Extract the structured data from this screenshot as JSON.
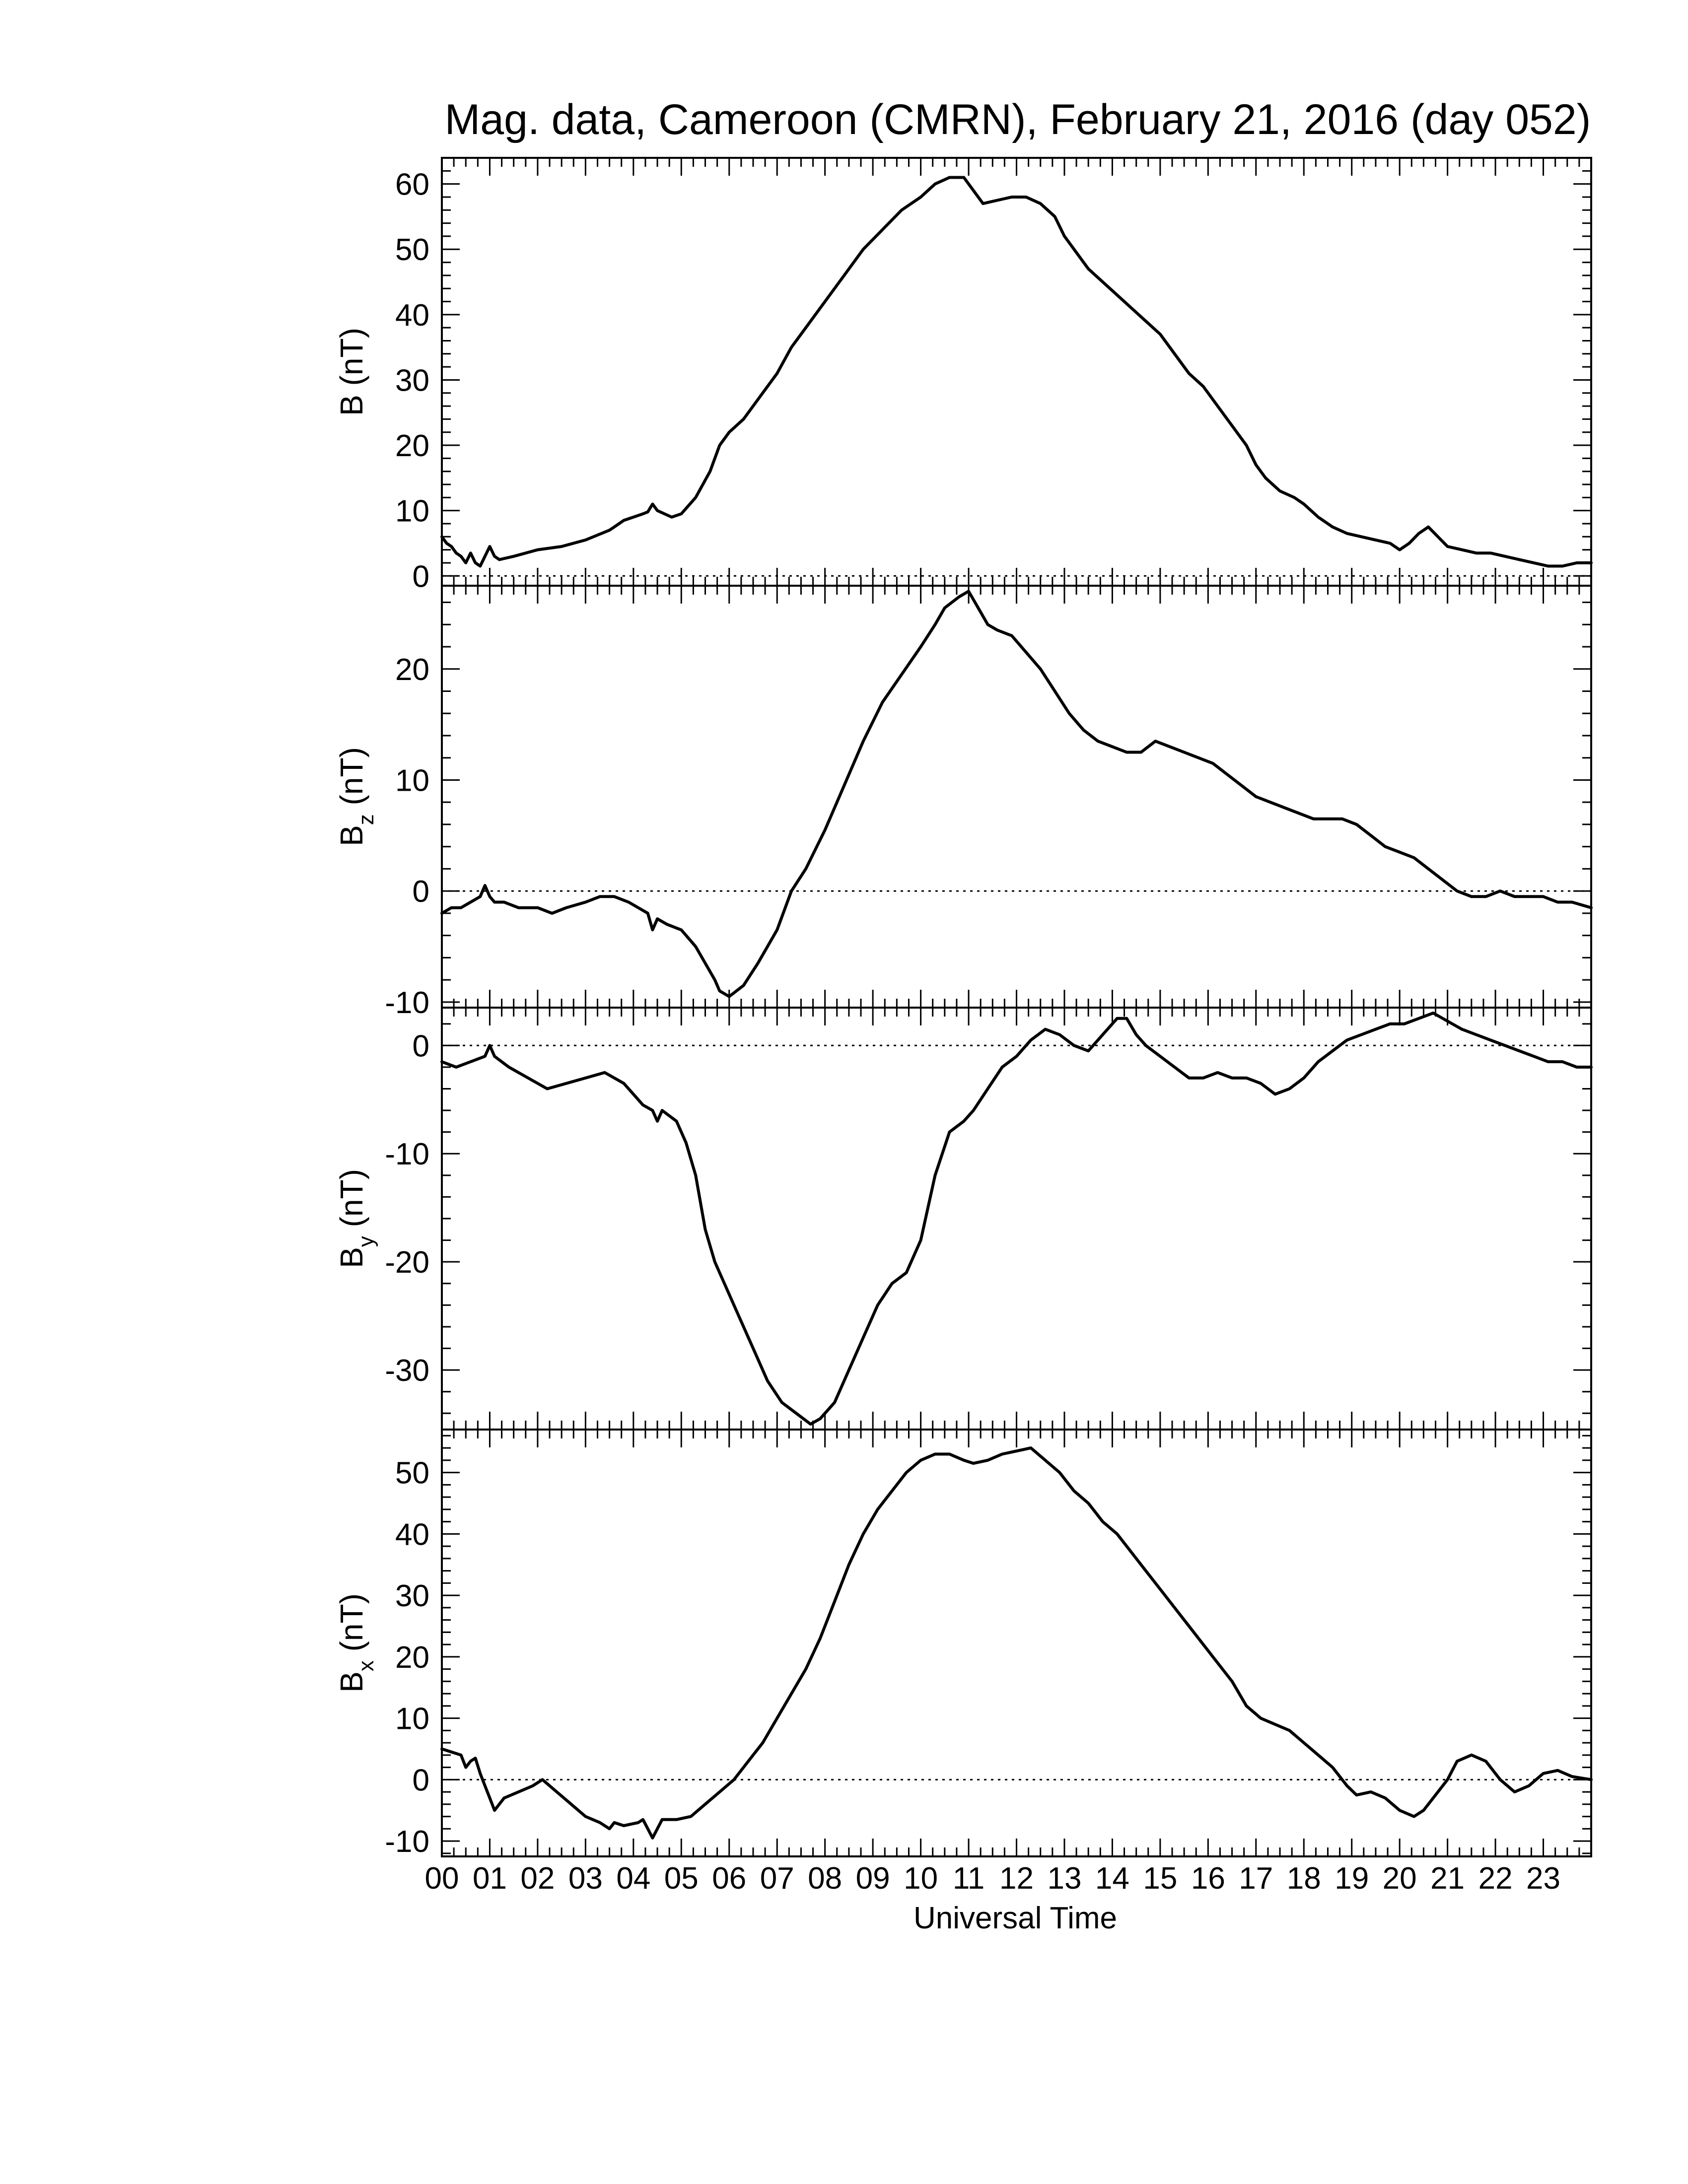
{
  "title": "Mag. data, Cameroon (CMRN), February 21, 2016 (day 052)",
  "xlabel": "Universal Time",
  "x_tick_labels": [
    "00",
    "01",
    "02",
    "03",
    "04",
    "05",
    "06",
    "07",
    "08",
    "09",
    "10",
    "11",
    "12",
    "13",
    "14",
    "15",
    "16",
    "17",
    "18",
    "19",
    "20",
    "21",
    "22",
    "23"
  ],
  "chart_data": [
    {
      "type": "line",
      "id": "B",
      "ylabel_main": "B",
      "ylabel_sub": "",
      "ylabel_unit": " (nT)",
      "xlim": [
        0,
        24
      ],
      "ylim": [
        -1.5,
        64
      ],
      "yticks": [
        0,
        10,
        20,
        30,
        40,
        50,
        60
      ],
      "zero_line": true,
      "x": [
        0,
        0.1,
        0.2,
        0.3,
        0.4,
        0.5,
        0.6,
        0.7,
        0.8,
        0.9,
        1.0,
        1.1,
        1.2,
        1.5,
        2.0,
        2.5,
        3.0,
        3.5,
        3.6,
        3.7,
        3.8,
        4.0,
        4.2,
        4.3,
        4.4,
        4.5,
        4.8,
        5.0,
        5.3,
        5.6,
        5.8,
        6.0,
        6.3,
        6.6,
        7.0,
        7.3,
        7.6,
        8.0,
        8.4,
        8.8,
        9.2,
        9.6,
        10.0,
        10.3,
        10.6,
        10.9,
        11.1,
        11.3,
        11.6,
        11.9,
        12.2,
        12.5,
        12.8,
        13.0,
        13.2,
        13.5,
        13.8,
        14.1,
        14.4,
        14.7,
        15.0,
        15.3,
        15.6,
        15.9,
        16.2,
        16.5,
        16.8,
        17.0,
        17.2,
        17.5,
        17.8,
        18.0,
        18.3,
        18.6,
        18.9,
        19.2,
        19.5,
        19.8,
        20.0,
        20.2,
        20.4,
        20.6,
        20.8,
        21.0,
        21.3,
        21.6,
        21.9,
        22.2,
        22.5,
        22.8,
        23.1,
        23.4,
        23.7,
        24.0
      ],
      "y": [
        6,
        5,
        4.5,
        3.5,
        3,
        2,
        3.5,
        2,
        1.5,
        3,
        4.5,
        3,
        2.5,
        3,
        4,
        4.5,
        5.5,
        7,
        7.5,
        8,
        8.5,
        9,
        9.5,
        9.8,
        11,
        10,
        9,
        9.5,
        12,
        16,
        20,
        22,
        24,
        27,
        31,
        35,
        38,
        42,
        46,
        50,
        53,
        56,
        58,
        60,
        61,
        61,
        59,
        57,
        57.5,
        58,
        58,
        57,
        55,
        52,
        50,
        47,
        45,
        43,
        41,
        39,
        37,
        34,
        31,
        29,
        26,
        23,
        20,
        17,
        15,
        13,
        12,
        11,
        9,
        7.5,
        6.5,
        6,
        5.5,
        5,
        4,
        5,
        6.5,
        7.5,
        6,
        4.5,
        4,
        3.5,
        3.5,
        3,
        2.5,
        2,
        1.5,
        1.5,
        2,
        2
      ]
    },
    {
      "type": "line",
      "id": "Bz",
      "ylabel_main": "B",
      "ylabel_sub": "z",
      "ylabel_unit": " (nT)",
      "xlim": [
        0,
        24
      ],
      "ylim": [
        -10.5,
        27.5
      ],
      "yticks": [
        -10,
        0,
        10,
        20
      ],
      "zero_line": true,
      "x": [
        0,
        0.2,
        0.4,
        0.6,
        0.8,
        0.9,
        1.0,
        1.1,
        1.3,
        1.6,
        2.0,
        2.3,
        2.6,
        3.0,
        3.3,
        3.6,
        3.9,
        4.1,
        4.3,
        4.4,
        4.5,
        4.7,
        5.0,
        5.3,
        5.5,
        5.7,
        5.8,
        6.0,
        6.3,
        6.6,
        7.0,
        7.3,
        7.6,
        8.0,
        8.4,
        8.8,
        9.2,
        9.6,
        10.0,
        10.3,
        10.5,
        10.8,
        11.0,
        11.2,
        11.4,
        11.6,
        11.9,
        12.2,
        12.5,
        12.8,
        13.1,
        13.4,
        13.7,
        14.0,
        14.3,
        14.6,
        14.9,
        15.2,
        15.5,
        15.8,
        16.1,
        16.4,
        16.7,
        17.0,
        17.3,
        17.6,
        17.9,
        18.2,
        18.5,
        18.8,
        19.1,
        19.4,
        19.7,
        20.0,
        20.3,
        20.6,
        20.9,
        21.2,
        21.5,
        21.8,
        22.1,
        22.4,
        22.7,
        23.0,
        23.3,
        23.6,
        24.0
      ],
      "y": [
        -2,
        -1.5,
        -1.5,
        -1,
        -0.5,
        0.5,
        -0.5,
        -1,
        -1,
        -1.5,
        -1.5,
        -2,
        -1.5,
        -1,
        -0.5,
        -0.5,
        -1,
        -1.5,
        -2,
        -3.5,
        -2.5,
        -3,
        -3.5,
        -5,
        -6.5,
        -8,
        -9,
        -9.5,
        -8.5,
        -6.5,
        -3.5,
        0,
        2,
        5.5,
        9.5,
        13.5,
        17,
        19.5,
        22,
        24,
        25.5,
        26.5,
        27,
        25.5,
        24,
        23.5,
        23,
        21.5,
        20,
        18,
        16,
        14.5,
        13.5,
        13,
        12.5,
        12.5,
        13.5,
        13,
        12.5,
        12,
        11.5,
        10.5,
        9.5,
        8.5,
        8,
        7.5,
        7,
        6.5,
        6.5,
        6.5,
        6,
        5,
        4,
        3.5,
        3,
        2,
        1,
        0,
        -0.5,
        -0.5,
        0,
        -0.5,
        -0.5,
        -0.5,
        -1,
        -1,
        -1.5
      ]
    },
    {
      "type": "line",
      "id": "By",
      "ylabel_main": "B",
      "ylabel_sub": "y",
      "ylabel_unit": " (nT)",
      "xlim": [
        0,
        24
      ],
      "ylim": [
        -35.5,
        3.5
      ],
      "yticks": [
        -30,
        -20,
        -10,
        0
      ],
      "zero_line": true,
      "x": [
        0,
        0.3,
        0.6,
        0.9,
        1.0,
        1.1,
        1.4,
        1.8,
        2.2,
        2.6,
        3.0,
        3.4,
        3.8,
        4.0,
        4.2,
        4.4,
        4.5,
        4.6,
        4.9,
        5.1,
        5.3,
        5.5,
        5.7,
        5.9,
        6.2,
        6.5,
        6.8,
        7.1,
        7.4,
        7.7,
        7.9,
        8.2,
        8.5,
        8.8,
        9.1,
        9.4,
        9.7,
        10.0,
        10.3,
        10.6,
        10.9,
        11.1,
        11.4,
        11.7,
        12.0,
        12.3,
        12.6,
        12.9,
        13.2,
        13.5,
        13.8,
        14.1,
        14.3,
        14.5,
        14.7,
        15.0,
        15.3,
        15.6,
        15.9,
        16.2,
        16.5,
        16.8,
        17.1,
        17.4,
        17.7,
        18.0,
        18.3,
        18.6,
        18.9,
        19.2,
        19.5,
        19.8,
        20.1,
        20.4,
        20.7,
        20.9,
        21.1,
        21.3,
        21.6,
        21.9,
        22.2,
        22.5,
        22.8,
        23.1,
        23.4,
        23.7,
        24.0
      ],
      "y": [
        -1.5,
        -2,
        -1.5,
        -1,
        0,
        -1,
        -2,
        -3,
        -4,
        -3.5,
        -3,
        -2.5,
        -3.5,
        -4.5,
        -5.5,
        -6,
        -7,
        -6,
        -7,
        -9,
        -12,
        -17,
        -20,
        -22,
        -25,
        -28,
        -31,
        -33,
        -34,
        -35,
        -34.5,
        -33,
        -30,
        -27,
        -24,
        -22,
        -21,
        -18,
        -12,
        -8,
        -7,
        -6,
        -4,
        -2,
        -1,
        0.5,
        1.5,
        1,
        0,
        -0.5,
        1,
        2.5,
        2.5,
        1,
        0,
        -1,
        -2,
        -3,
        -3,
        -2.5,
        -3,
        -3,
        -3.5,
        -4.5,
        -4,
        -3,
        -1.5,
        -0.5,
        0.5,
        1,
        1.5,
        2,
        2,
        2.5,
        3,
        2.5,
        2,
        1.5,
        1,
        0.5,
        0,
        -0.5,
        -1,
        -1.5,
        -1.5,
        -2,
        -2
      ]
    },
    {
      "type": "line",
      "id": "Bx",
      "ylabel_main": "B",
      "ylabel_sub": "x",
      "ylabel_unit": " (nT)",
      "xlim": [
        0,
        24
      ],
      "ylim": [
        -12.5,
        57
      ],
      "yticks": [
        -10,
        0,
        10,
        20,
        30,
        40,
        50
      ],
      "zero_line": true,
      "x": [
        0,
        0.2,
        0.4,
        0.5,
        0.6,
        0.7,
        0.8,
        0.9,
        1.0,
        1.1,
        1.3,
        1.6,
        1.9,
        2.1,
        2.4,
        2.7,
        3.0,
        3.3,
        3.5,
        3.6,
        3.8,
        4.1,
        4.2,
        4.3,
        4.4,
        4.6,
        4.9,
        5.2,
        5.5,
        5.8,
        6.1,
        6.4,
        6.7,
        7.0,
        7.3,
        7.6,
        7.9,
        8.2,
        8.5,
        8.8,
        9.1,
        9.4,
        9.7,
        10.0,
        10.3,
        10.6,
        10.9,
        11.1,
        11.4,
        11.7,
        12.0,
        12.3,
        12.6,
        12.9,
        13.2,
        13.5,
        13.8,
        14.1,
        14.4,
        14.7,
        15.0,
        15.3,
        15.6,
        15.9,
        16.2,
        16.5,
        16.8,
        17.1,
        17.4,
        17.7,
        18.0,
        18.3,
        18.6,
        18.9,
        19.1,
        19.4,
        19.7,
        20.0,
        20.3,
        20.5,
        20.8,
        21.0,
        21.2,
        21.5,
        21.8,
        22.1,
        22.4,
        22.7,
        23.0,
        23.3,
        23.6,
        24.0
      ],
      "y": [
        5,
        4.5,
        4,
        2,
        3,
        3.5,
        1,
        -1,
        -3,
        -5,
        -3,
        -2,
        -1,
        0,
        -2,
        -4,
        -6,
        -7,
        -8,
        -7,
        -7.5,
        -7,
        -6.5,
        -8,
        -9.5,
        -6.5,
        -6.5,
        -6,
        -4,
        -2,
        0,
        3,
        6,
        10,
        14,
        18,
        23,
        29,
        35,
        40,
        44,
        47,
        50,
        52,
        53,
        53,
        52,
        51.5,
        52,
        53,
        53.5,
        54,
        52,
        50,
        47,
        45,
        42,
        40,
        37,
        34,
        31,
        28,
        25,
        22,
        19,
        16,
        12,
        10,
        9,
        8,
        6,
        4,
        2,
        -1,
        -2.5,
        -2,
        -3,
        -5,
        -6,
        -5,
        -2,
        0,
        3,
        4,
        3,
        0,
        -2,
        -1,
        1,
        1.5,
        0.5,
        0
      ]
    }
  ]
}
